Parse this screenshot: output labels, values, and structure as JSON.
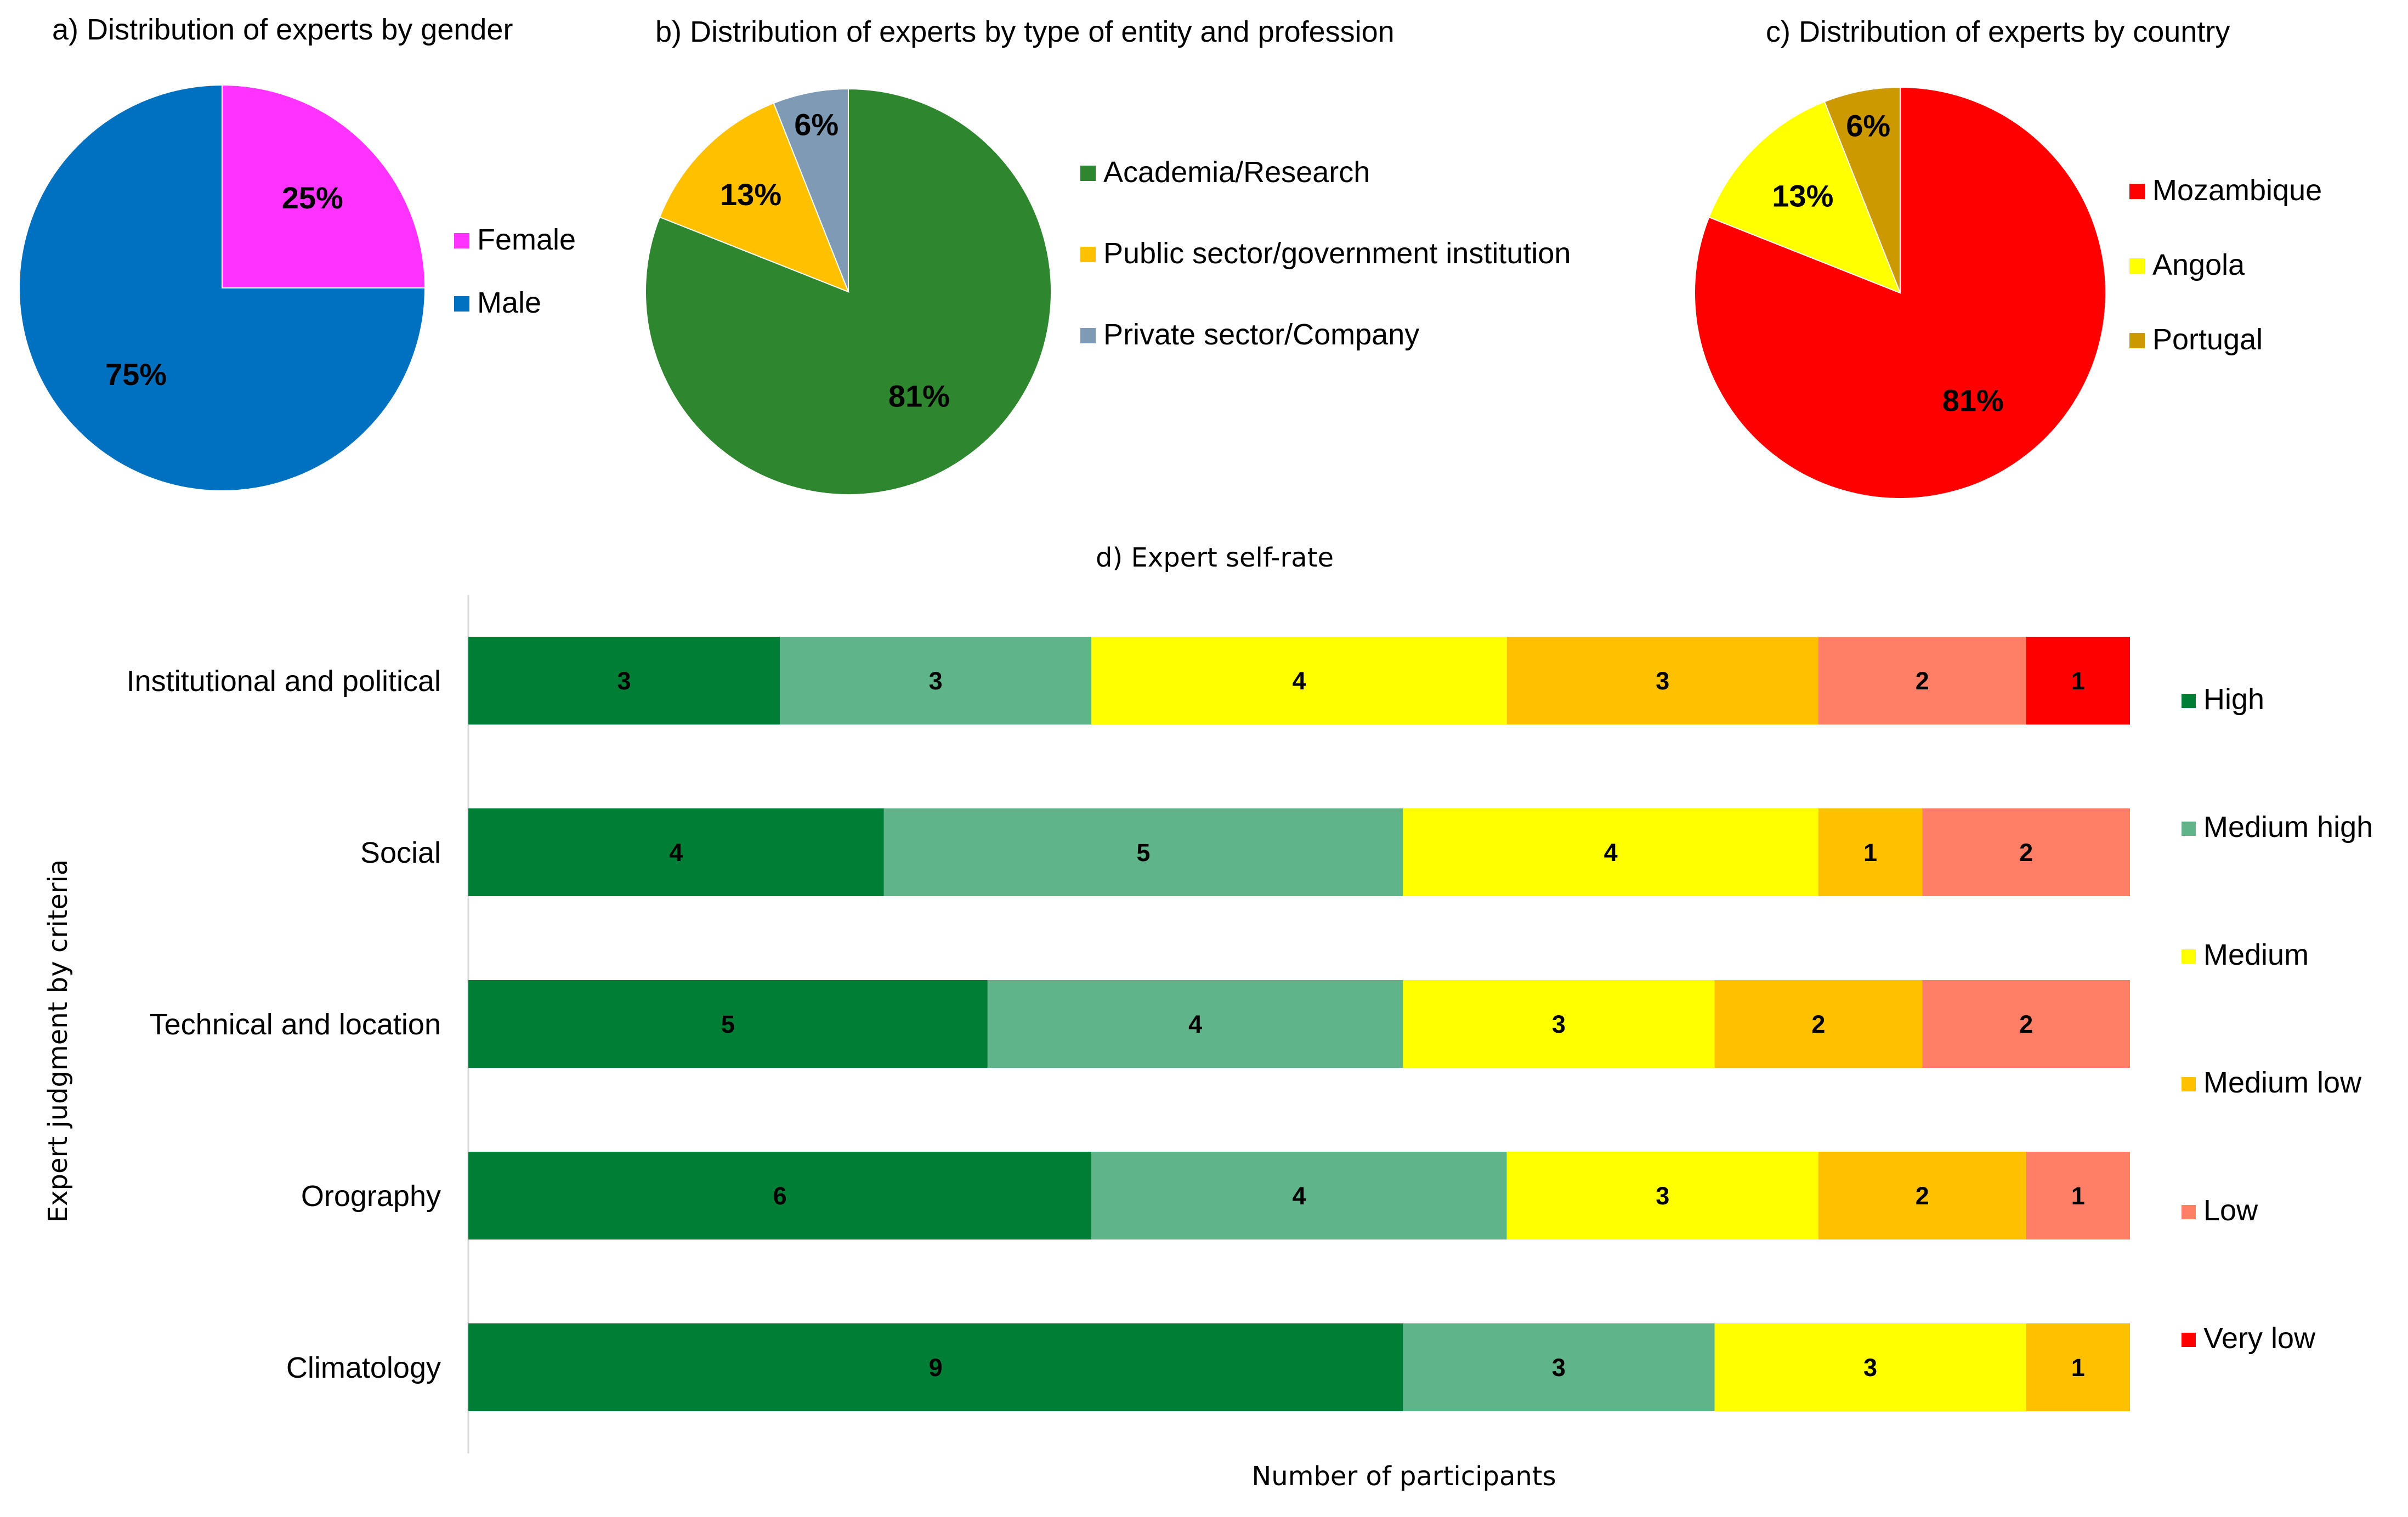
{
  "chart_data": [
    {
      "type": "pie",
      "title": "a) Distribution of experts by gender",
      "slices": [
        {
          "label": "Female",
          "value": 25,
          "pct_label": "25%",
          "color": "#FF33FF"
        },
        {
          "label": "Male",
          "value": 75,
          "pct_label": "75%",
          "color": "#0070C0"
        }
      ]
    },
    {
      "type": "pie",
      "title": "b) Distribution of experts by type of entity and profession",
      "slices": [
        {
          "label": "Academia/Research",
          "value": 81,
          "pct_label": "81%",
          "color": "#2E862E"
        },
        {
          "label": "Public sector/government institution",
          "value": 13,
          "pct_label": "13%",
          "color": "#FFC000"
        },
        {
          "label": "Private sector/Company",
          "value": 6,
          "pct_label": "6%",
          "color": "#7F9AB4"
        }
      ]
    },
    {
      "type": "pie",
      "title": "c) Distribution of experts by country",
      "slices": [
        {
          "label": "Mozambique",
          "value": 81,
          "pct_label": "81%",
          "color": "#FF0000"
        },
        {
          "label": "Angola",
          "value": 13,
          "pct_label": "13%",
          "color": "#FFFF00"
        },
        {
          "label": "Portugal",
          "value": 6,
          "pct_label": "6%",
          "color": "#CC9900"
        }
      ]
    },
    {
      "type": "bar",
      "orientation": "horizontal",
      "stacked": true,
      "title": "d) Expert self-rate",
      "xlabel": "Number of participants",
      "ylabel": "Expert judgment by criteria",
      "xlim": [
        0,
        16
      ],
      "categories": [
        "Institutional and political",
        "Social",
        "Technical and location",
        "Orography",
        "Climatology"
      ],
      "series": [
        {
          "name": "High",
          "color": "#007E36",
          "values": [
            3,
            4,
            5,
            6,
            9
          ]
        },
        {
          "name": "Medium high",
          "color": "#5FB48A",
          "values": [
            3,
            5,
            4,
            4,
            3
          ]
        },
        {
          "name": "Medium",
          "color": "#FFFF00",
          "values": [
            4,
            4,
            3,
            3,
            3
          ]
        },
        {
          "name": "Medium low",
          "color": "#FFC000",
          "values": [
            3,
            1,
            2,
            2,
            1
          ]
        },
        {
          "name": "Low",
          "color": "#FF7F66",
          "values": [
            2,
            2,
            2,
            1,
            0
          ]
        },
        {
          "name": "Very low",
          "color": "#FF0000",
          "values": [
            1,
            0,
            0,
            0,
            0
          ]
        }
      ]
    }
  ]
}
